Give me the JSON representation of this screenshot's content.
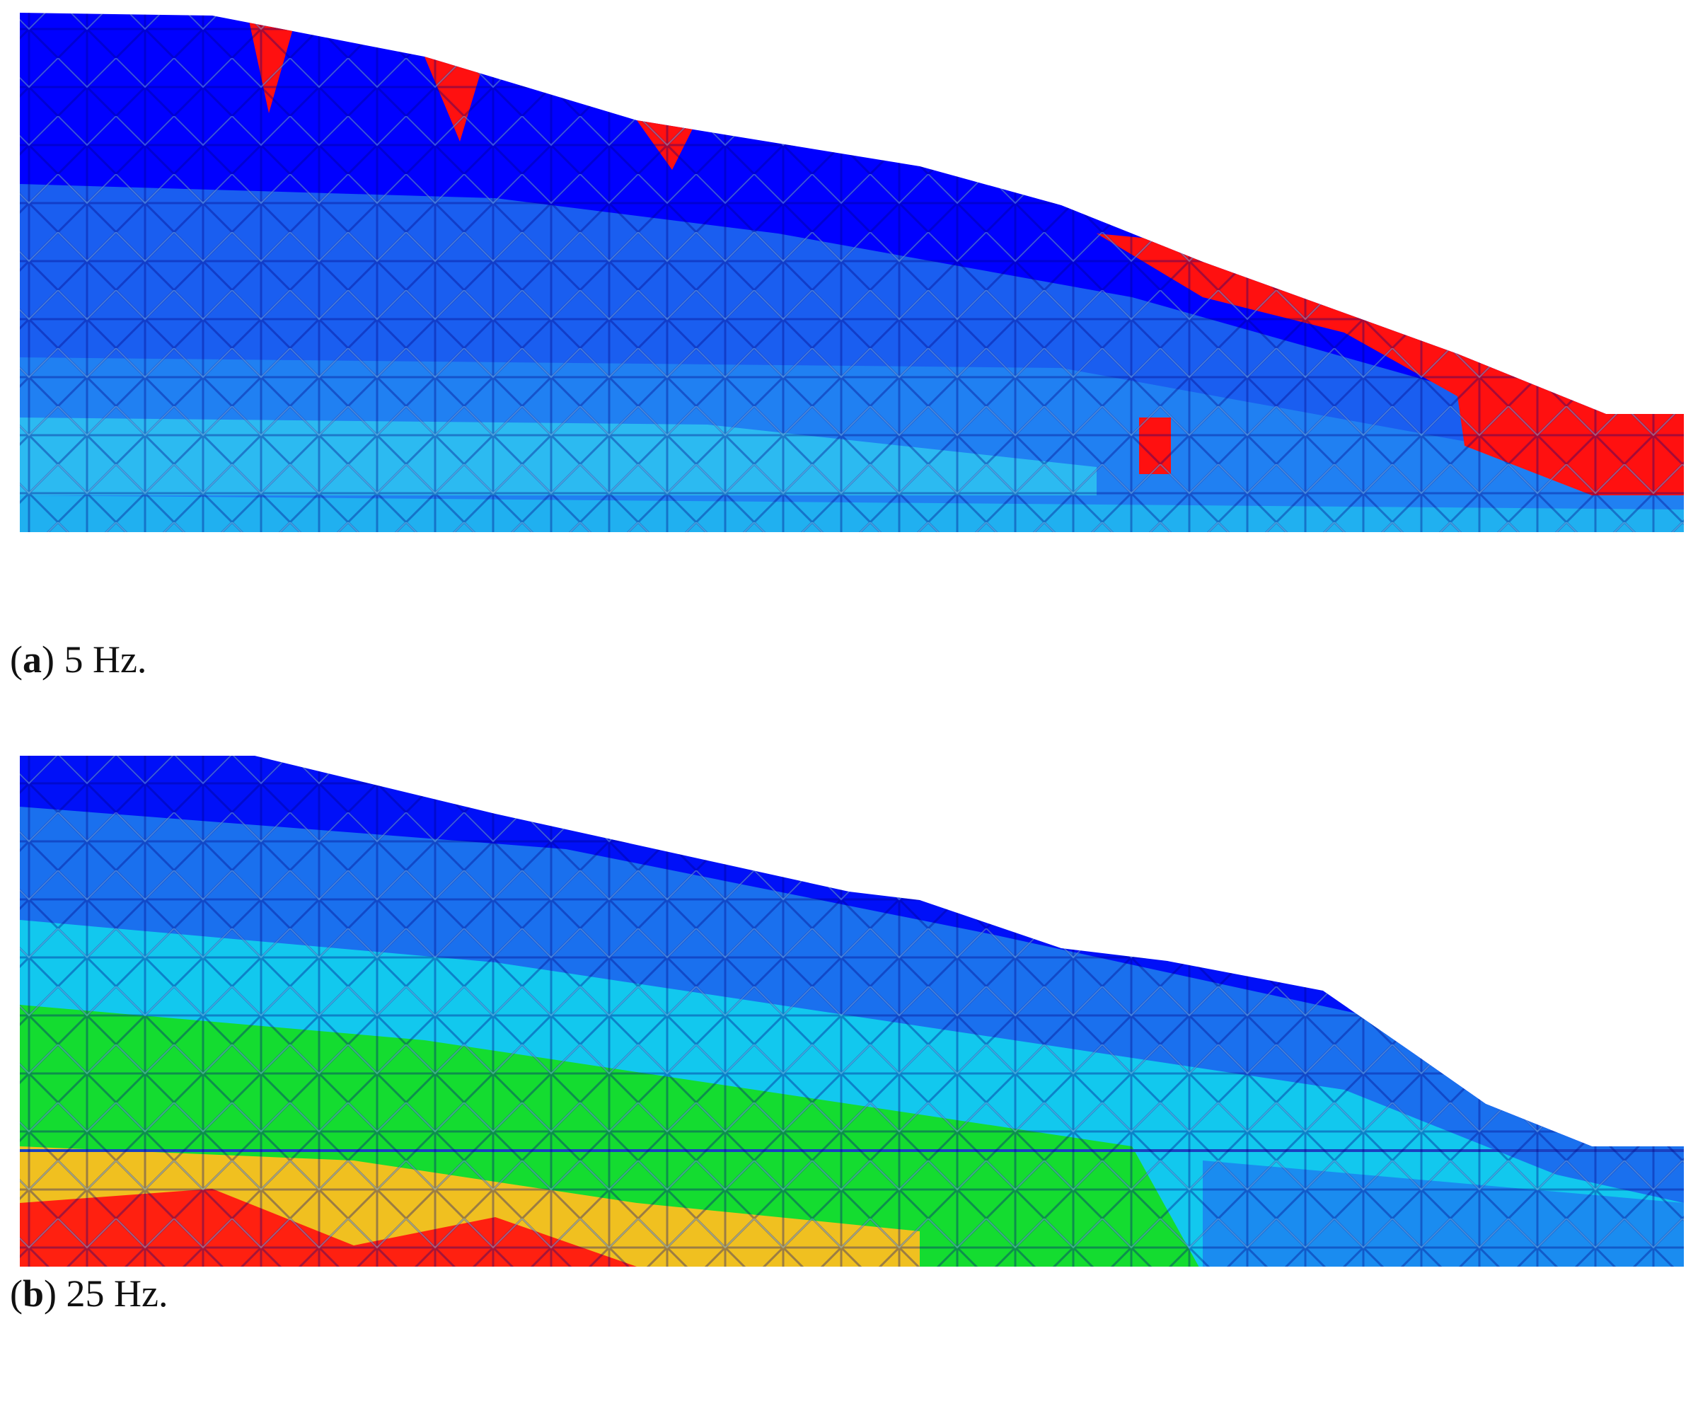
{
  "panels": [
    {
      "open": "(",
      "label": "a",
      "close": ")",
      "caption": "5 Hz."
    },
    {
      "open": "(",
      "label": "b",
      "close": ")",
      "caption": "25 Hz."
    }
  ]
}
